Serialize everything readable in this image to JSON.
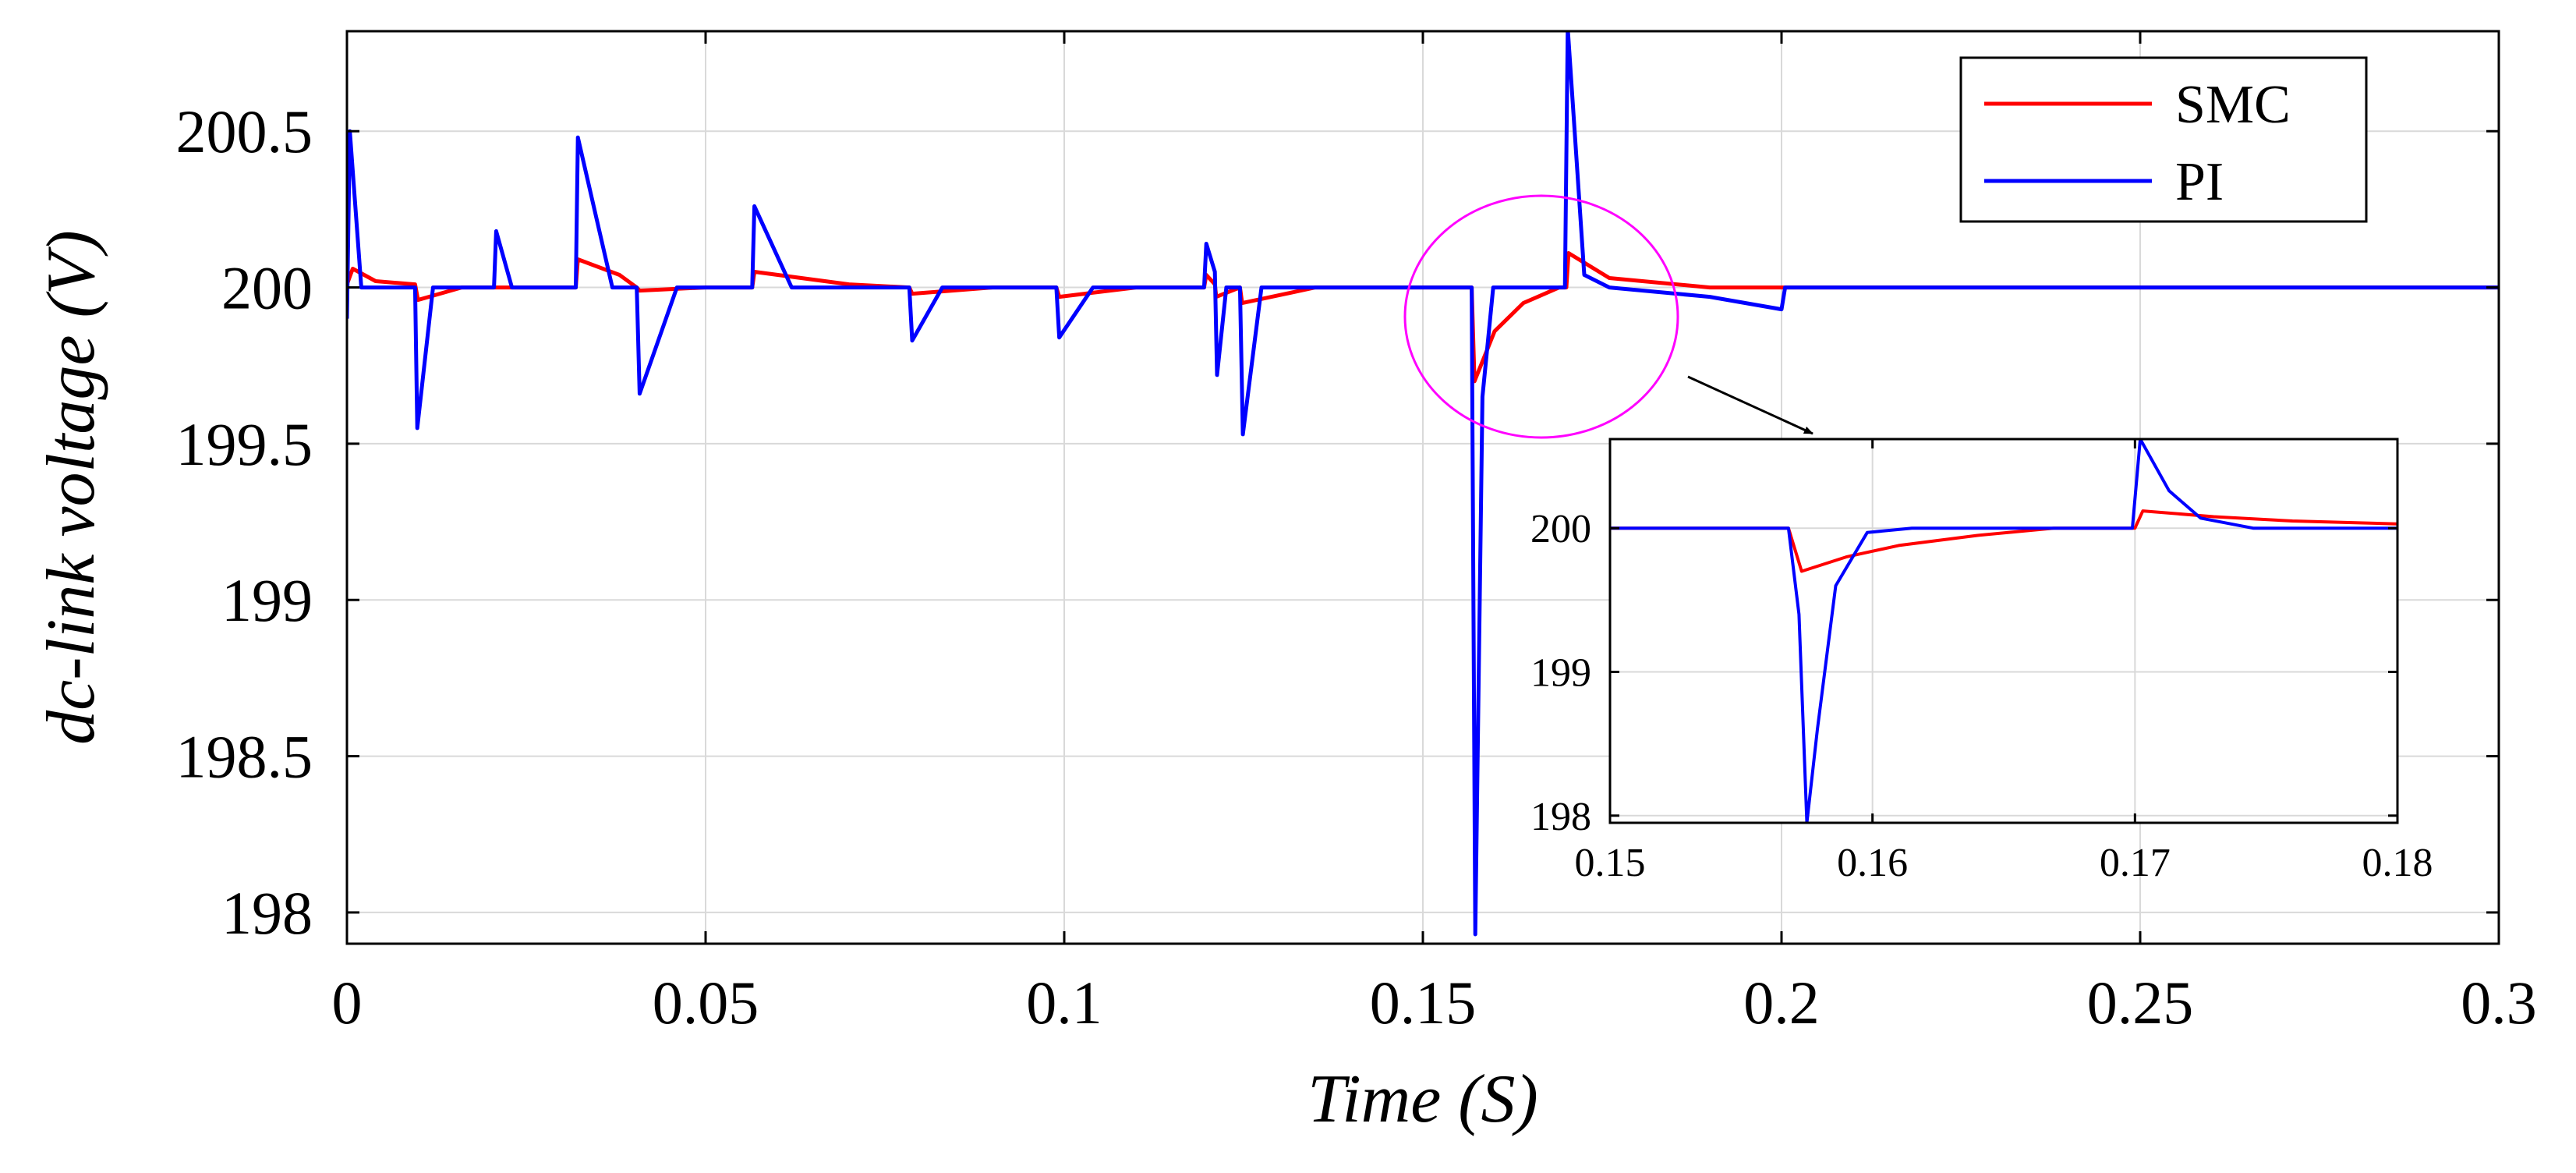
{
  "chart_data": [
    {
      "type": "line",
      "title": "",
      "xlabel": "Time (S)",
      "ylabel": "dc-link voltage (V)",
      "xlim": [
        0,
        0.3
      ],
      "ylim": [
        197.9,
        200.82
      ],
      "xticks": [
        0,
        0.05,
        0.1,
        0.15,
        0.2,
        0.25,
        0.3
      ],
      "xtick_labels": [
        "0",
        "0.05",
        "0.1",
        "0.15",
        "0.2",
        "0.25",
        "0.3"
      ],
      "yticks": [
        198,
        198.5,
        199,
        199.5,
        200,
        200.5
      ],
      "ytick_labels": [
        "198",
        "198.5",
        "199",
        "199.5",
        "200",
        "200.5"
      ],
      "grid": true,
      "legend": {
        "location": "top-right",
        "entries": [
          "SMC",
          "PI"
        ]
      },
      "series": [
        {
          "name": "SMC",
          "color": "#ff0000",
          "x": [
            0,
            0.0008,
            0.004,
            0.0095,
            0.0099,
            0.016,
            0.0319,
            0.0322,
            0.038,
            0.0404,
            0.0408,
            0.05,
            0.0565,
            0.0568,
            0.07,
            0.0784,
            0.0788,
            0.09,
            0.0989,
            0.0993,
            0.11,
            0.1195,
            0.1198,
            0.121,
            0.1212,
            0.1245,
            0.1248,
            0.135,
            0.15,
            0.1568,
            0.1572,
            0.16,
            0.164,
            0.169,
            0.17,
            0.1703,
            0.176,
            0.19,
            0.2,
            0.25,
            0.3
          ],
          "y": [
            200.01,
            200.06,
            200.02,
            200.01,
            199.96,
            200.0,
            200.0,
            200.09,
            200.04,
            200.0,
            199.99,
            200.0,
            200.0,
            200.05,
            200.01,
            200.0,
            199.98,
            200.0,
            200.0,
            199.97,
            200.0,
            200.0,
            200.04,
            200.01,
            199.97,
            200.0,
            199.95,
            200.0,
            200.0,
            200.0,
            199.7,
            199.86,
            199.95,
            200.0,
            200.0,
            200.11,
            200.03,
            200.0,
            200.0,
            200.0,
            200.0
          ]
        },
        {
          "name": "PI",
          "color": "#0000ff",
          "x": [
            0,
            0.0004,
            0.002,
            0.0095,
            0.0098,
            0.012,
            0.0205,
            0.0208,
            0.023,
            0.0319,
            0.0322,
            0.037,
            0.0404,
            0.0408,
            0.046,
            0.0565,
            0.0568,
            0.062,
            0.0784,
            0.0788,
            0.083,
            0.0989,
            0.0993,
            0.104,
            0.1195,
            0.1198,
            0.121,
            0.1213,
            0.1226,
            0.1245,
            0.1249,
            0.1275,
            0.135,
            0.15,
            0.1568,
            0.1573,
            0.1583,
            0.1598,
            0.165,
            0.1698,
            0.1702,
            0.1725,
            0.176,
            0.19,
            0.2,
            0.2005,
            0.25,
            0.3
          ],
          "y": [
            199.9,
            200.5,
            200.0,
            200.0,
            199.55,
            200.0,
            200.0,
            200.18,
            200.0,
            200.0,
            200.48,
            200.0,
            200.0,
            199.66,
            200.0,
            200.0,
            200.26,
            200.0,
            200.0,
            199.83,
            200.0,
            200.0,
            199.84,
            200.0,
            200.0,
            200.14,
            200.05,
            199.72,
            200.0,
            200.0,
            199.53,
            200.0,
            200.0,
            200.0,
            200.0,
            197.93,
            199.65,
            200.0,
            200.0,
            200.0,
            200.83,
            200.04,
            200.0,
            199.97,
            199.93,
            200.0,
            200.0,
            200.0
          ]
        }
      ]
    },
    {
      "type": "line",
      "title": "",
      "xlabel": "",
      "ylabel": "",
      "xlim": [
        0.15,
        0.18
      ],
      "ylim": [
        197.95,
        200.62
      ],
      "xticks": [
        0.15,
        0.16,
        0.17,
        0.18
      ],
      "xtick_labels": [
        "0.15",
        "0.16",
        "0.17",
        "0.18"
      ],
      "yticks": [
        198,
        199,
        200
      ],
      "ytick_labels": [
        "198",
        "199",
        "200"
      ],
      "grid": true,
      "annotations": [
        "zoom-circle",
        "zoom-arrow"
      ],
      "series": [
        {
          "name": "SMC",
          "color": "#ff0000",
          "x": [
            0.15,
            0.1568,
            0.1573,
            0.159,
            0.161,
            0.164,
            0.1669,
            0.17,
            0.1703,
            0.173,
            0.176,
            0.18
          ],
          "y": [
            200.0,
            200.0,
            199.7,
            199.8,
            199.88,
            199.95,
            200.0,
            200.0,
            200.12,
            200.08,
            200.05,
            200.03
          ]
        },
        {
          "name": "PI",
          "color": "#0000ff",
          "x": [
            0.15,
            0.1568,
            0.1572,
            0.1575,
            0.1579,
            0.1586,
            0.1598,
            0.1615,
            0.1699,
            0.1702,
            0.1713,
            0.1725,
            0.1745,
            0.18
          ],
          "y": [
            200.0,
            200.0,
            199.4,
            197.95,
            198.6,
            199.6,
            199.97,
            200.0,
            200.0,
            200.62,
            200.26,
            200.07,
            200.0,
            200.0
          ]
        }
      ]
    }
  ]
}
